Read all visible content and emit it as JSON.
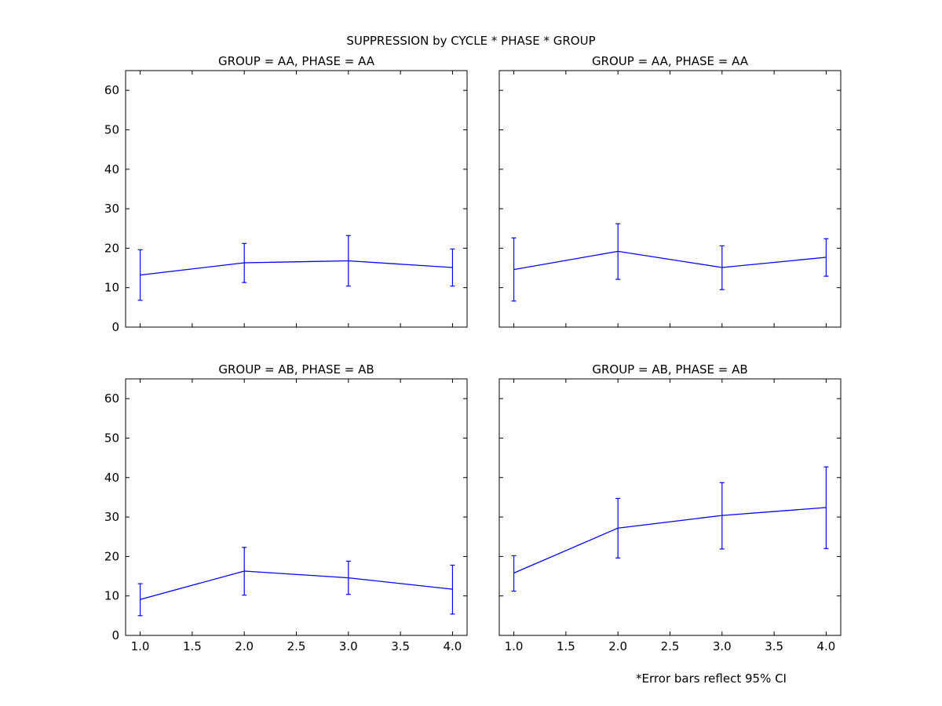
{
  "figure": {
    "suptitle": "SUPPRESSION by CYCLE * PHASE * GROUP",
    "footnote": "*Error bars reflect 95% CI"
  },
  "colors": {
    "series": "#0000ff",
    "axes": "#000000"
  },
  "chart_data": [
    {
      "type": "line",
      "title": "GROUP = AA, PHASE = AA",
      "x": [
        1,
        2,
        3,
        4
      ],
      "y": [
        13.2,
        16.3,
        16.8,
        15.1
      ],
      "err_low": [
        6.8,
        11.3,
        10.4,
        10.4
      ],
      "err_high": [
        19.6,
        21.2,
        23.2,
        19.8
      ],
      "xlim": [
        0.86,
        4.14
      ],
      "ylim": [
        0,
        65
      ],
      "xticks": [
        1.0,
        1.5,
        2.0,
        2.5,
        3.0,
        3.5,
        4.0
      ],
      "yticks": [
        0,
        10,
        20,
        30,
        40,
        50,
        60
      ],
      "show_xticklabels": false,
      "show_yticklabels": true,
      "grid": false
    },
    {
      "type": "line",
      "title": "GROUP = AA, PHASE = AA",
      "x": [
        1,
        2,
        3,
        4
      ],
      "y": [
        14.6,
        19.2,
        15.1,
        17.7
      ],
      "err_low": [
        6.6,
        12.1,
        9.5,
        12.9
      ],
      "err_high": [
        22.6,
        26.2,
        20.6,
        22.4
      ],
      "xlim": [
        0.86,
        4.14
      ],
      "ylim": [
        0,
        65
      ],
      "xticks": [
        1.0,
        1.5,
        2.0,
        2.5,
        3.0,
        3.5,
        4.0
      ],
      "yticks": [
        0,
        10,
        20,
        30,
        40,
        50,
        60
      ],
      "show_xticklabels": false,
      "show_yticklabels": false,
      "grid": false
    },
    {
      "type": "line",
      "title": "GROUP = AB, PHASE = AB",
      "x": [
        1,
        2,
        3,
        4
      ],
      "y": [
        9.1,
        16.3,
        14.6,
        11.7
      ],
      "err_low": [
        5.0,
        10.2,
        10.4,
        5.4
      ],
      "err_high": [
        13.1,
        22.3,
        18.8,
        17.8
      ],
      "xlim": [
        0.86,
        4.14
      ],
      "ylim": [
        0,
        65
      ],
      "xticks": [
        1.0,
        1.5,
        2.0,
        2.5,
        3.0,
        3.5,
        4.0
      ],
      "yticks": [
        0,
        10,
        20,
        30,
        40,
        50,
        60
      ],
      "show_xticklabels": true,
      "show_yticklabels": true,
      "grid": false
    },
    {
      "type": "line",
      "title": "GROUP = AB, PHASE = AB",
      "x": [
        1,
        2,
        3,
        4
      ],
      "y": [
        15.8,
        27.2,
        30.4,
        32.4
      ],
      "err_low": [
        11.2,
        19.6,
        21.9,
        22.0
      ],
      "err_high": [
        20.2,
        34.7,
        38.7,
        42.7
      ],
      "xlim": [
        0.86,
        4.14
      ],
      "ylim": [
        0,
        65
      ],
      "xticks": [
        1.0,
        1.5,
        2.0,
        2.5,
        3.0,
        3.5,
        4.0
      ],
      "yticks": [
        0,
        10,
        20,
        30,
        40,
        50,
        60
      ],
      "show_xticklabels": true,
      "show_yticklabels": false,
      "grid": false
    }
  ]
}
